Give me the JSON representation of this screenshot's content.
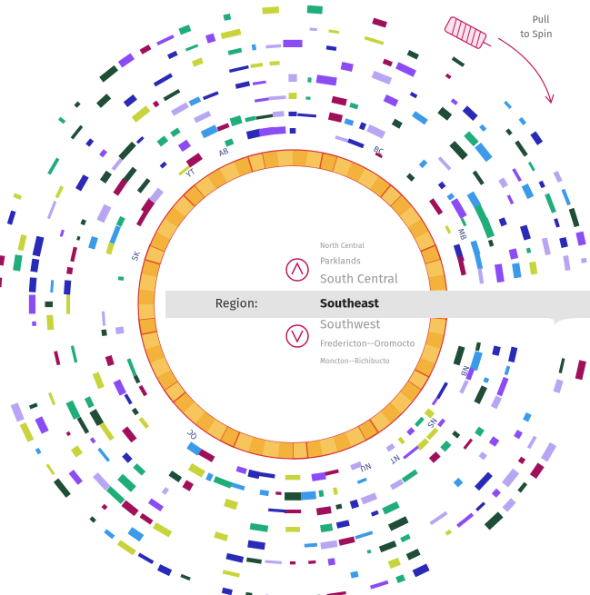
{
  "spin_hint": {
    "line1": "Pull",
    "line2": "to Spin"
  },
  "provinces": [
    "AB",
    "BC",
    "MB",
    "NB",
    "NS",
    "NT",
    "NU",
    "QC",
    "SK",
    "YT"
  ],
  "selector": {
    "label": "Region:",
    "selected": "Southeast",
    "above": [
      "North Central",
      "Parklands",
      "South Central"
    ],
    "below": [
      "Southwest",
      "Fredericton--Oromocto",
      "Moncton--Richibucto"
    ]
  }
}
